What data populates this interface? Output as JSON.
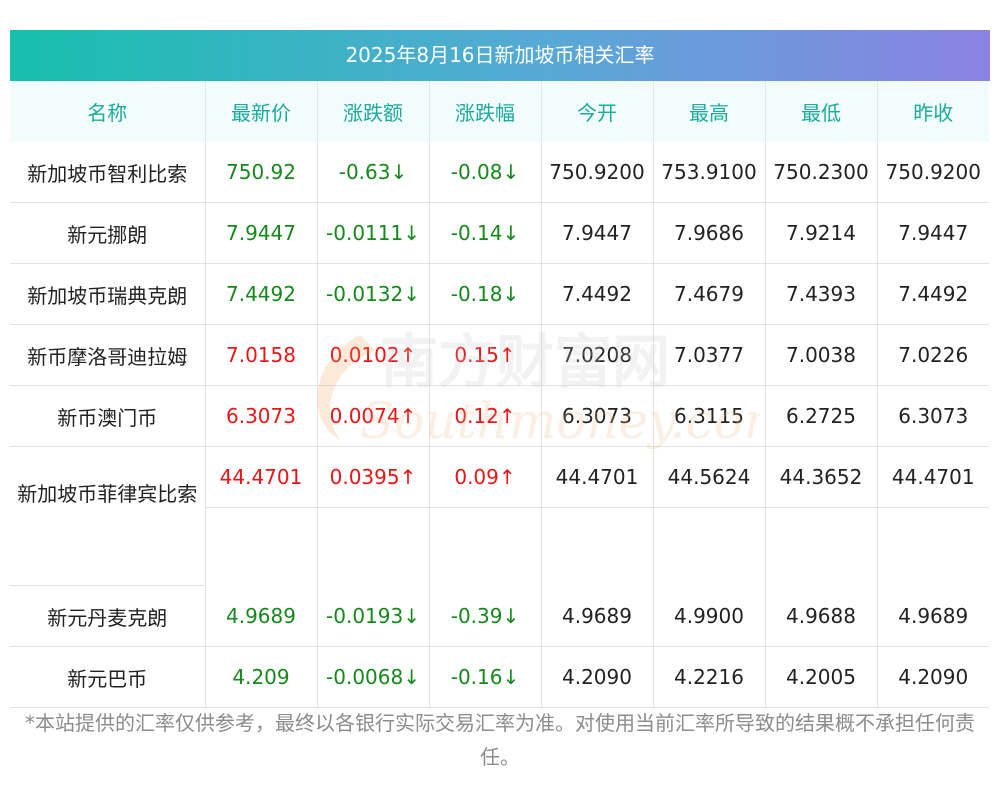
{
  "banner": {
    "title": "2025年8月16日新加坡币相关汇率"
  },
  "table": {
    "headers": [
      "名称",
      "最新价",
      "涨跌额",
      "涨跌幅",
      "今开",
      "最高",
      "最低",
      "昨收"
    ],
    "rows": [
      {
        "name": "新加坡币智利比索",
        "latest": "750.92",
        "change": "-0.63↓",
        "pct": "-0.08↓",
        "open": "750.9200",
        "high": "753.9100",
        "low": "750.2300",
        "prev": "750.9200",
        "trend": "down"
      },
      {
        "name": "新元挪朗",
        "latest": "7.9447",
        "change": "-0.0111↓",
        "pct": "-0.14↓",
        "open": "7.9447",
        "high": "7.9686",
        "low": "7.9214",
        "prev": "7.9447",
        "trend": "down"
      },
      {
        "name": "新加坡币瑞典克朗",
        "latest": "7.4492",
        "change": "-0.0132↓",
        "pct": "-0.18↓",
        "open": "7.4492",
        "high": "7.4679",
        "low": "7.4393",
        "prev": "7.4492",
        "trend": "down"
      },
      {
        "name": "新币摩洛哥迪拉姆",
        "latest": "7.0158",
        "change": "0.0102↑",
        "pct": "0.15↑",
        "open": "7.0208",
        "high": "7.0377",
        "low": "7.0038",
        "prev": "7.0226",
        "trend": "up"
      },
      {
        "name": "新币澳门币",
        "latest": "6.3073",
        "change": "0.0074↑",
        "pct": "0.12↑",
        "open": "6.3073",
        "high": "6.3115",
        "low": "6.2725",
        "prev": "6.3073",
        "trend": "up"
      },
      {
        "name": "新加坡币菲律宾比索",
        "latest": "44.4701",
        "change": "0.0395↑",
        "pct": "0.09↑",
        "open": "44.4701",
        "high": "44.5624",
        "low": "44.3652",
        "prev": "44.4701",
        "trend": "up"
      },
      {
        "name": "新元丹麦克朗",
        "latest": "4.9689",
        "change": "-0.0193↓",
        "pct": "-0.39↓",
        "open": "4.9689",
        "high": "4.9900",
        "low": "4.9688",
        "prev": "4.9689",
        "trend": "down"
      },
      {
        "name": "新元巴币",
        "latest": "4.209",
        "change": "-0.0068↓",
        "pct": "-0.16↓",
        "open": "4.2090",
        "high": "4.2216",
        "low": "4.2005",
        "prev": "4.2090",
        "trend": "down"
      }
    ]
  },
  "watermark": {
    "cn": "南方财富网",
    "en": "Southmoney.com"
  },
  "footnote": "*本站提供的汇率仅供参考，最终以各银行实际交易汇率为准。对使用当前汇率所导致的结果概不承担任何责任。",
  "colors": {
    "up": "#ea1616",
    "down": "#15891b",
    "header_text": "#1aab9c",
    "banner_start": "#17bfae",
    "banner_end": "#8b82e3"
  }
}
